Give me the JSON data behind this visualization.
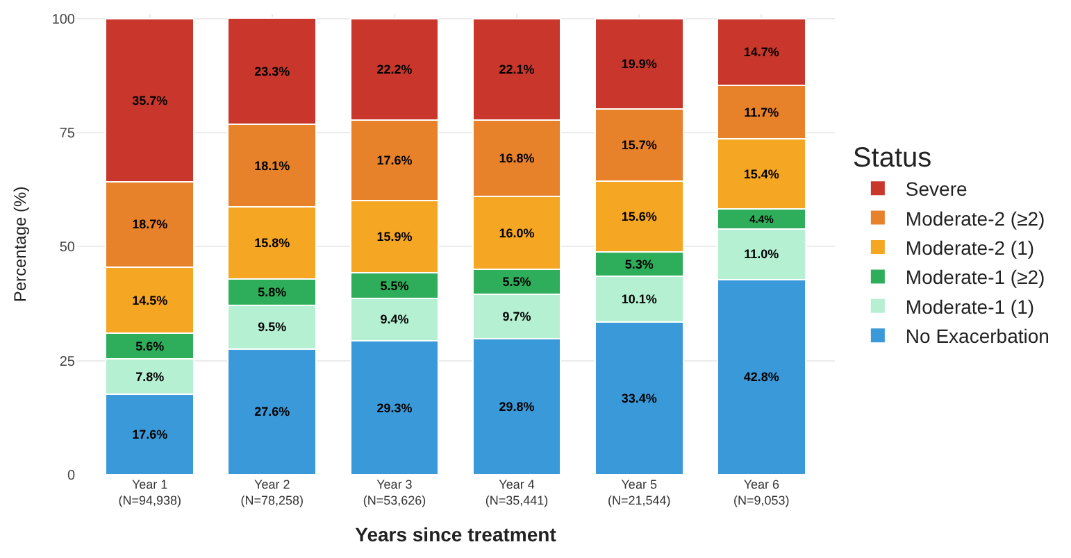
{
  "chart_data": {
    "type": "bar",
    "stacked": true,
    "xlabel": "Years since treatment",
    "ylabel": "Percentage (%)",
    "legend_title": "Status",
    "legend": "right",
    "grid": true,
    "categories": [
      "Year 1\n(N=94,938)",
      "Year 2\n(N=78,258)",
      "Year 3\n(N=53,626)",
      "Year 4\n(N=35,441)",
      "Year 5\n(N=21,544)",
      "Year 6\n(N=9,053)"
    ],
    "ylim": [
      0,
      101
    ],
    "yticks": [
      0,
      25,
      50,
      75,
      100
    ],
    "series": [
      {
        "name": "No Exacerbation",
        "color": "#3a9ad9",
        "values": [
          17.6,
          27.6,
          29.3,
          29.8,
          33.4,
          42.8
        ],
        "value_labels": [
          "17.6%",
          "27.6%",
          "29.3%",
          "29.8%",
          "33.4%",
          "42.8%"
        ]
      },
      {
        "name": "Moderate-1 (1)",
        "color": "#b5f0d2",
        "values": [
          7.8,
          9.5,
          9.4,
          9.7,
          10.1,
          11.0
        ],
        "value_labels": [
          "7.8%",
          "9.5%",
          "9.4%",
          "9.7%",
          "10.1%",
          "11.0%"
        ]
      },
      {
        "name": "Moderate-1 (≥2)",
        "color": "#2eae5a",
        "values": [
          5.6,
          5.8,
          5.5,
          5.5,
          5.3,
          4.4
        ],
        "value_labels": [
          "5.6%",
          "5.8%",
          "5.5%",
          "5.5%",
          "5.3%",
          "4.4%"
        ]
      },
      {
        "name": "Moderate-2 (1)",
        "color": "#f5a623",
        "values": [
          14.5,
          15.8,
          15.9,
          16.0,
          15.6,
          15.4
        ],
        "value_labels": [
          "14.5%",
          "15.8%",
          "15.9%",
          "16.0%",
          "15.6%",
          "15.4%"
        ]
      },
      {
        "name": "Moderate-2 (≥2)",
        "color": "#e8822a",
        "values": [
          18.7,
          18.1,
          17.6,
          16.8,
          15.7,
          11.7
        ],
        "value_labels": [
          "18.7%",
          "18.1%",
          "17.6%",
          "16.8%",
          "15.7%",
          "11.7%"
        ]
      },
      {
        "name": "Severe",
        "color": "#c9372c",
        "values": [
          35.7,
          23.3,
          22.2,
          22.1,
          19.9,
          14.7
        ],
        "value_labels": [
          "35.7%",
          "23.3%",
          "22.2%",
          "22.1%",
          "19.9%",
          "14.7%"
        ]
      }
    ]
  }
}
